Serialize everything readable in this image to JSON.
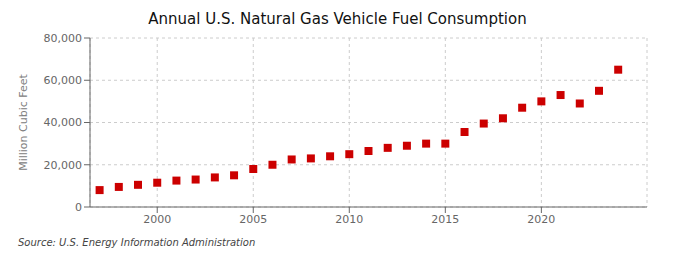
{
  "chart_data": {
    "type": "scatter",
    "title": "Annual U.S. Natural Gas Vehicle Fuel Consumption",
    "ylabel": "Million Cubic Feet",
    "source": "Source: U.S. Energy Information Administration",
    "x": [
      1997,
      1998,
      1999,
      2000,
      2001,
      2002,
      2003,
      2004,
      2005,
      2006,
      2007,
      2008,
      2009,
      2010,
      2011,
      2012,
      2013,
      2014,
      2015,
      2016,
      2017,
      2018,
      2019,
      2020,
      2021,
      2022,
      2023,
      2024
    ],
    "values": [
      8000,
      9500,
      10500,
      11500,
      12500,
      13000,
      14000,
      15000,
      18000,
      20000,
      22500,
      23000,
      24000,
      25000,
      26500,
      28000,
      29000,
      30000,
      30000,
      35500,
      39500,
      42000,
      47000,
      50000,
      53000,
      49000,
      55000,
      65000
    ],
    "color": "#cc0000",
    "marker": "square",
    "xlim": [
      1996.5,
      2025.5
    ],
    "ylim": [
      0,
      80000
    ],
    "xticks": [
      2000,
      2005,
      2010,
      2015,
      2020
    ],
    "yticks": [
      0,
      {
        "value": 20000,
        "label": "20,000"
      },
      {
        "value": 40000,
        "label": "40,000"
      },
      {
        "value": 60000,
        "label": "60,000"
      },
      {
        "value": 80000,
        "label": "80,000"
      }
    ],
    "grid": true
  }
}
